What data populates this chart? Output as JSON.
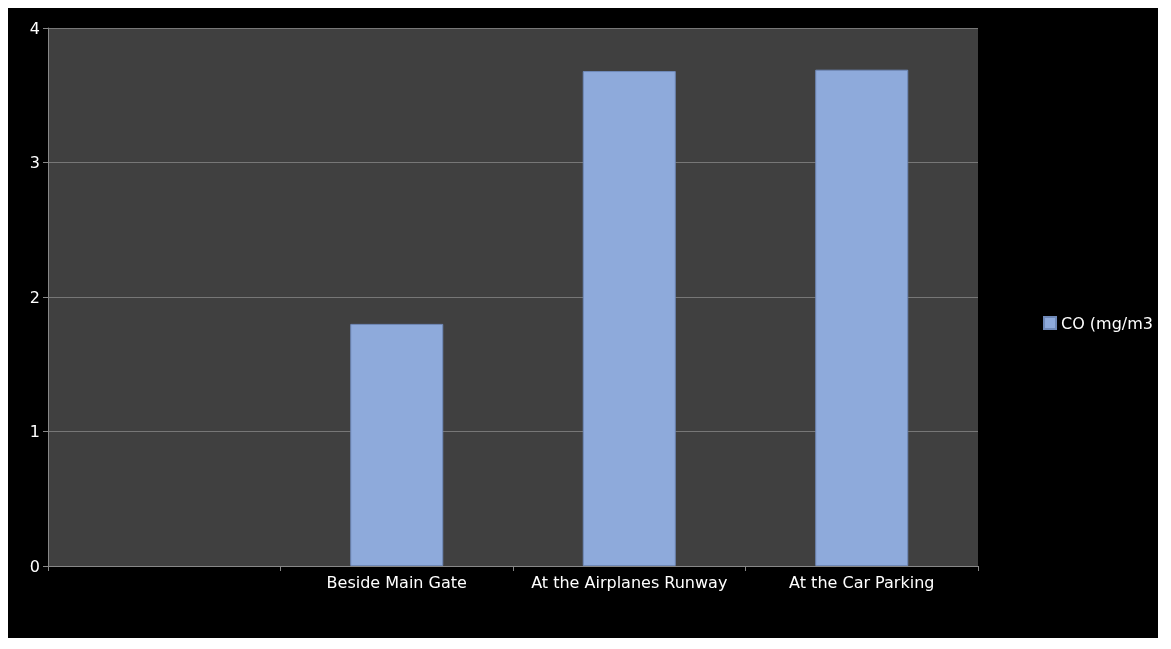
{
  "chart_data": {
    "type": "bar",
    "categories": [
      null,
      "Beside Main Gate",
      "At the Airplanes Runway",
      "At the Car Parking"
    ],
    "series": [
      {
        "name": "CO (mg/m3",
        "color": "#8eaadb",
        "values": [
          null,
          1.8,
          3.68,
          3.69
        ]
      }
    ],
    "ylim": [
      0,
      4
    ],
    "yticks": [
      0,
      1,
      2,
      3,
      4
    ],
    "grid": "y",
    "legend": "right"
  }
}
